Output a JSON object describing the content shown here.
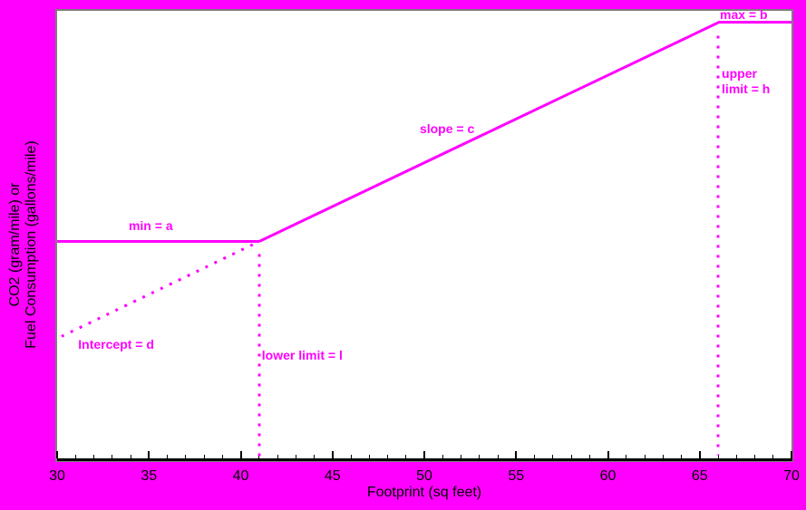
{
  "background_color": "#ff00ff",
  "panel_background": "#ffffff",
  "panel_border_color": "#7f7f7f",
  "axis_color": "#000000",
  "chart_data": {
    "type": "line",
    "title": "",
    "xlabel": "Footprint (sq feet)",
    "ylabel": "CO2 (gram/mile) or\nFuel Consumption (gallons/mile)",
    "xlim": [
      30,
      70
    ],
    "ylim": [
      0,
      100
    ],
    "x_major_ticks": [
      30,
      35,
      40,
      45,
      50,
      55,
      60,
      65,
      70
    ],
    "x_minor_step": 1,
    "grid": false,
    "legend": "none",
    "series": [
      {
        "name": "standard-curve",
        "style": "solid",
        "color": "#ff00ff",
        "points": [
          [
            30,
            48.7
          ],
          [
            41,
            48.7
          ],
          [
            66,
            97.4
          ],
          [
            70,
            97.4
          ]
        ],
        "note": "flat at min=a up to lower limit l (41), rises with slope c, flat at max=b after upper limit h (66)"
      },
      {
        "name": "intercept-extension",
        "style": "dotted",
        "color": "#ff00ff",
        "points": [
          [
            41,
            48.7
          ],
          [
            30.2,
            27.5
          ]
        ]
      },
      {
        "name": "lower-limit-guide",
        "style": "dotted",
        "color": "#ff00ff",
        "points": [
          [
            41,
            47.5
          ],
          [
            41,
            1
          ]
        ]
      },
      {
        "name": "upper-limit-guide",
        "style": "dotted",
        "color": "#ff00ff",
        "points": [
          [
            66,
            96
          ],
          [
            66,
            1
          ]
        ]
      }
    ],
    "annotations": [
      {
        "name": "min-label",
        "text": "min = a",
        "x": 33.9,
        "y": 53.9
      },
      {
        "name": "slope-label",
        "text": "slope = c",
        "x": 49.75,
        "y": 75.4
      },
      {
        "name": "max-label",
        "text": "max = b",
        "x": 66.1,
        "y": 100.8
      },
      {
        "name": "upper-limit-label",
        "text": "upper\nlimit = h",
        "x": 66.2,
        "y": 87.7
      },
      {
        "name": "lower-limit-label",
        "text": "lower limit = l",
        "x": 41.15,
        "y": 25.1
      },
      {
        "name": "intercept-label",
        "text": "Intercept = d",
        "x": 31.15,
        "y": 27.5
      }
    ]
  }
}
